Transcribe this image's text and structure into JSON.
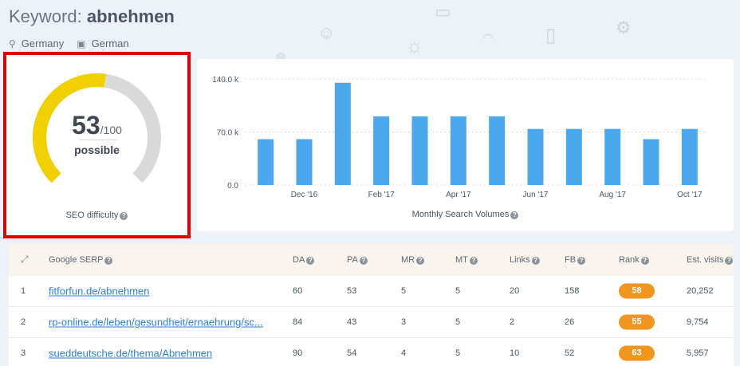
{
  "header": {
    "keyword_label": "Keyword:",
    "keyword": "abnehmen",
    "location": "Germany",
    "language": "German",
    "location_icon": "map-pin-icon",
    "language_icon": "translate-icon"
  },
  "difficulty": {
    "score": "53",
    "max": "/100",
    "score_value": 53,
    "verdict": "possible",
    "caption": "SEO difficulty",
    "gauge_color": "#f0d000",
    "track_color": "#d9d9d9"
  },
  "chart_data": {
    "type": "bar",
    "xlabel": "Monthly Search Volumes",
    "ylabel": "",
    "ylim": [
      0,
      140000
    ],
    "yticks": [
      "0.0",
      "70.0 k",
      "140.0 k"
    ],
    "ytick_values": [
      0,
      70000,
      140000
    ],
    "xtick_labels": [
      "Dec '16",
      "Feb '17",
      "Apr '17",
      "Jun '17",
      "Aug '17",
      "Oct '17"
    ],
    "xtick_indices": [
      1,
      3,
      5,
      7,
      9,
      11
    ],
    "values": [
      60500,
      60500,
      135000,
      90500,
      90500,
      90500,
      90500,
      74000,
      74000,
      74000,
      60500,
      74000
    ],
    "bar_color": "#4ba8ec",
    "grid": true
  },
  "table": {
    "expand_icon": "expand-icon",
    "headers": {
      "serp": "Google SERP",
      "da": "DA",
      "pa": "PA",
      "mr": "MR",
      "mt": "MT",
      "links": "Links",
      "fb": "FB",
      "rank": "Rank",
      "visits": "Est. visits"
    },
    "rows": [
      {
        "pos": "1",
        "url": "fitforfun.de/abnehmen",
        "da": "60",
        "pa": "53",
        "mr": "5",
        "mt": "5",
        "links": "20",
        "fb": "158",
        "rank": "58",
        "visits": "20,252"
      },
      {
        "pos": "2",
        "url": "rp-online.de/leben/gesundheit/ernaehrung/sc...",
        "da": "84",
        "pa": "43",
        "mr": "3",
        "mt": "5",
        "links": "2",
        "fb": "26",
        "rank": "55",
        "visits": "9,754"
      },
      {
        "pos": "3",
        "url": "sueddeutsche.de/thema/Abnehmen",
        "da": "90",
        "pa": "54",
        "mr": "4",
        "mt": "5",
        "links": "10",
        "fb": "52",
        "rank": "63",
        "visits": "5,957"
      }
    ],
    "rank_color": "#f0961f"
  }
}
